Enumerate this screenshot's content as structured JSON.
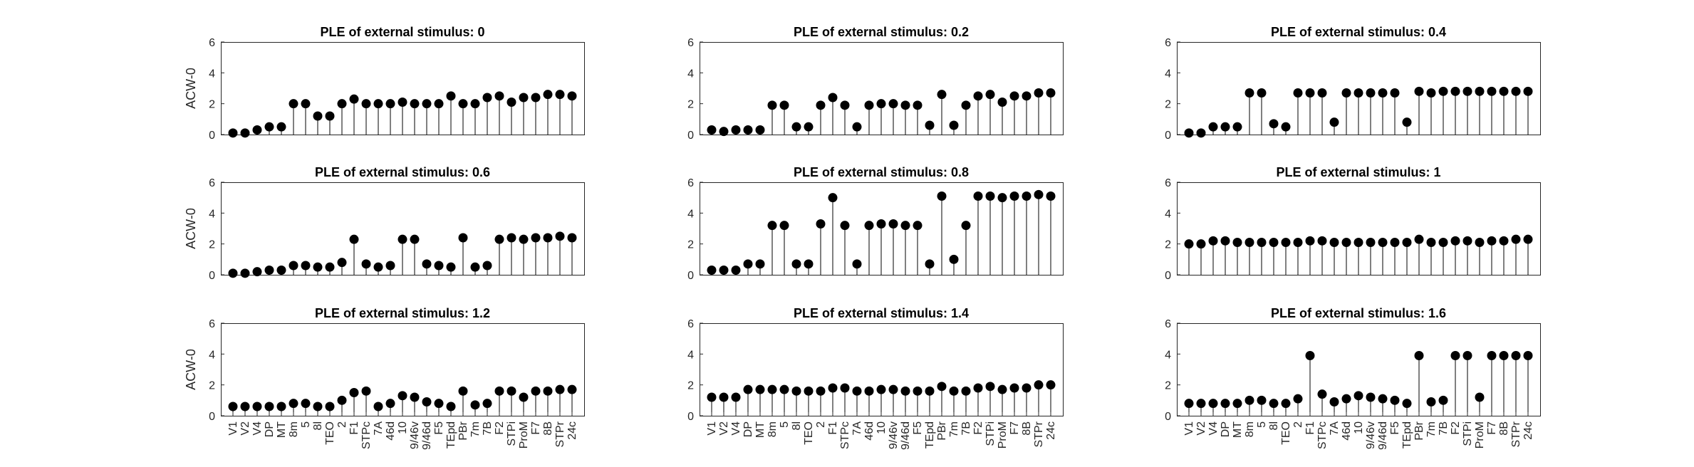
{
  "chart_data": {
    "type": "stem",
    "categories": [
      "V1",
      "V2",
      "V4",
      "DP",
      "MT",
      "8m",
      "5",
      "8l",
      "TEO",
      "2",
      "F1",
      "STPc",
      "7A",
      "46d",
      "10",
      "9/46v",
      "9/46d",
      "F5",
      "TEpd",
      "PBr",
      "7m",
      "7B",
      "F2",
      "STPi",
      "ProM",
      "F7",
      "8B",
      "STPr",
      "24c"
    ],
    "ylabel": "ACW-0",
    "ylim": [
      0,
      6
    ],
    "yticks": [
      0,
      2,
      4,
      6
    ],
    "panels": [
      {
        "title": "PLE of external stimulus: 0",
        "values": [
          0.1,
          0.1,
          0.3,
          0.5,
          0.5,
          2.0,
          2.0,
          1.2,
          1.2,
          2.0,
          2.3,
          2.0,
          2.0,
          2.0,
          2.1,
          2.0,
          2.0,
          2.0,
          2.5,
          2.0,
          2.0,
          2.4,
          2.5,
          2.1,
          2.4,
          2.4,
          2.6,
          2.6,
          2.5
        ]
      },
      {
        "title": "PLE of external stimulus: 0.2",
        "values": [
          0.3,
          0.2,
          0.3,
          0.3,
          0.3,
          1.9,
          1.9,
          0.5,
          0.5,
          1.9,
          2.4,
          1.9,
          0.5,
          1.9,
          2.0,
          2.0,
          1.9,
          1.9,
          0.6,
          2.6,
          0.6,
          1.9,
          2.5,
          2.6,
          2.1,
          2.5,
          2.5,
          2.7,
          2.7
        ]
      },
      {
        "title": "PLE of external stimulus: 0.4",
        "values": [
          0.1,
          0.1,
          0.5,
          0.5,
          0.5,
          2.7,
          2.7,
          0.7,
          0.5,
          2.7,
          2.7,
          2.7,
          0.8,
          2.7,
          2.7,
          2.7,
          2.7,
          2.7,
          0.8,
          2.8,
          2.7,
          2.8,
          2.8,
          2.8,
          2.8,
          2.8,
          2.8,
          2.8,
          2.8
        ]
      },
      {
        "title": "PLE of external stimulus: 0.6",
        "values": [
          0.1,
          0.1,
          0.2,
          0.3,
          0.3,
          0.6,
          0.6,
          0.5,
          0.5,
          0.8,
          2.3,
          0.7,
          0.5,
          0.6,
          2.3,
          2.3,
          0.7,
          0.6,
          0.5,
          2.4,
          0.5,
          0.6,
          2.3,
          2.4,
          2.3,
          2.4,
          2.4,
          2.5,
          2.4
        ]
      },
      {
        "title": "PLE of external stimulus: 0.8",
        "values": [
          0.3,
          0.3,
          0.3,
          0.7,
          0.7,
          3.2,
          3.2,
          0.7,
          0.7,
          3.3,
          5.0,
          3.2,
          0.7,
          3.2,
          3.3,
          3.3,
          3.2,
          3.2,
          0.7,
          5.1,
          1.0,
          3.2,
          5.1,
          5.1,
          5.0,
          5.1,
          5.1,
          5.2,
          5.1
        ]
      },
      {
        "title": "PLE of external stimulus: 1",
        "values": [
          2.0,
          2.0,
          2.2,
          2.2,
          2.1,
          2.1,
          2.1,
          2.1,
          2.1,
          2.1,
          2.2,
          2.2,
          2.1,
          2.1,
          2.1,
          2.1,
          2.1,
          2.1,
          2.1,
          2.3,
          2.1,
          2.1,
          2.2,
          2.2,
          2.1,
          2.2,
          2.2,
          2.3,
          2.3
        ]
      },
      {
        "title": "PLE of external stimulus: 1.2",
        "values": [
          0.6,
          0.6,
          0.6,
          0.6,
          0.6,
          0.8,
          0.8,
          0.6,
          0.6,
          1.0,
          1.5,
          1.6,
          0.6,
          0.8,
          1.3,
          1.2,
          0.9,
          0.8,
          0.6,
          1.6,
          0.7,
          0.8,
          1.6,
          1.6,
          1.2,
          1.6,
          1.6,
          1.7,
          1.7
        ]
      },
      {
        "title": "PLE of external stimulus: 1.4",
        "values": [
          1.2,
          1.2,
          1.2,
          1.7,
          1.7,
          1.7,
          1.7,
          1.6,
          1.6,
          1.6,
          1.8,
          1.8,
          1.6,
          1.6,
          1.7,
          1.7,
          1.6,
          1.6,
          1.6,
          1.9,
          1.6,
          1.6,
          1.8,
          1.9,
          1.7,
          1.8,
          1.8,
          2.0,
          2.0
        ]
      },
      {
        "title": "PLE of external stimulus: 1.6",
        "values": [
          0.8,
          0.8,
          0.8,
          0.8,
          0.8,
          1.0,
          1.0,
          0.8,
          0.8,
          1.1,
          3.9,
          1.4,
          0.9,
          1.1,
          1.3,
          1.2,
          1.1,
          1.0,
          0.8,
          3.9,
          0.9,
          1.0,
          3.9,
          3.9,
          1.2,
          3.9,
          3.9,
          3.9,
          3.9
        ]
      }
    ]
  }
}
